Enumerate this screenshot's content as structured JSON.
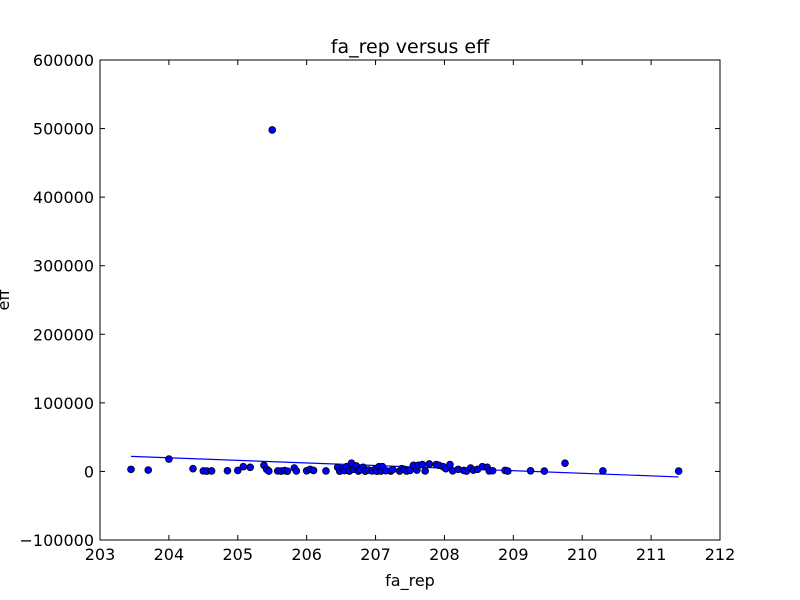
{
  "chart_data": {
    "type": "scatter",
    "title": "fa_rep versus eff",
    "xlabel": "fa_rep",
    "ylabel": "eff",
    "xlim": [
      203,
      212
    ],
    "ylim": [
      -100000,
      600000
    ],
    "x_ticks": [
      "203",
      "204",
      "205",
      "206",
      "207",
      "208",
      "209",
      "210",
      "211",
      "212"
    ],
    "y_ticks": [
      "600000",
      "500000",
      "400000",
      "300000",
      "200000",
      "100000",
      "0",
      "−100000"
    ],
    "x_tick_values": [
      203,
      204,
      205,
      206,
      207,
      208,
      209,
      210,
      211,
      212
    ],
    "y_tick_values": [
      600000,
      500000,
      400000,
      300000,
      200000,
      100000,
      0,
      -100000
    ],
    "grid": false,
    "point_color": "#0000ff",
    "line_color": "#0000ff",
    "points": [
      [
        203.45,
        3000
      ],
      [
        203.7,
        2000
      ],
      [
        204.0,
        18000
      ],
      [
        204.35,
        4000
      ],
      [
        204.5,
        800
      ],
      [
        204.55,
        500
      ],
      [
        204.62,
        700
      ],
      [
        204.85,
        1000
      ],
      [
        205.0,
        1500
      ],
      [
        205.08,
        7000
      ],
      [
        205.18,
        6000
      ],
      [
        205.38,
        9000
      ],
      [
        205.42,
        3000
      ],
      [
        205.45,
        500
      ],
      [
        205.5,
        498000
      ],
      [
        205.58,
        800
      ],
      [
        205.63,
        600
      ],
      [
        205.68,
        1200
      ],
      [
        205.72,
        400
      ],
      [
        205.82,
        5000
      ],
      [
        205.85,
        700
      ],
      [
        206.0,
        900
      ],
      [
        206.05,
        3000
      ],
      [
        206.1,
        1500
      ],
      [
        206.28,
        800
      ],
      [
        206.45,
        6000
      ],
      [
        206.48,
        300
      ],
      [
        206.52,
        4000
      ],
      [
        206.55,
        1200
      ],
      [
        206.58,
        7000
      ],
      [
        206.62,
        600
      ],
      [
        206.65,
        12000
      ],
      [
        206.68,
        3000
      ],
      [
        206.72,
        8000
      ],
      [
        206.75,
        500
      ],
      [
        206.78,
        2500
      ],
      [
        206.82,
        6000
      ],
      [
        206.85,
        400
      ],
      [
        206.9,
        2000
      ],
      [
        206.95,
        800
      ],
      [
        207.0,
        4000
      ],
      [
        207.02,
        300
      ],
      [
        207.05,
        7000
      ],
      [
        207.08,
        500
      ],
      [
        207.1,
        7000
      ],
      [
        207.15,
        1000
      ],
      [
        207.22,
        600
      ],
      [
        207.25,
        2500
      ],
      [
        207.35,
        500
      ],
      [
        207.38,
        4000
      ],
      [
        207.42,
        3000
      ],
      [
        207.45,
        600
      ],
      [
        207.5,
        1500
      ],
      [
        207.55,
        9000
      ],
      [
        207.6,
        2000
      ],
      [
        207.62,
        9000
      ],
      [
        207.68,
        10000
      ],
      [
        207.72,
        700
      ],
      [
        207.78,
        11000
      ],
      [
        207.88,
        10000
      ],
      [
        207.92,
        9000
      ],
      [
        207.98,
        7000
      ],
      [
        208.02,
        4000
      ],
      [
        208.08,
        10000
      ],
      [
        208.12,
        900
      ],
      [
        208.2,
        3000
      ],
      [
        208.28,
        1500
      ],
      [
        208.32,
        600
      ],
      [
        208.38,
        5000
      ],
      [
        208.42,
        2000
      ],
      [
        208.48,
        3000
      ],
      [
        208.55,
        7000
      ],
      [
        208.62,
        6000
      ],
      [
        208.65,
        800
      ],
      [
        208.7,
        1000
      ],
      [
        208.88,
        1500
      ],
      [
        208.92,
        600
      ],
      [
        209.25,
        900
      ],
      [
        209.45,
        500
      ],
      [
        209.75,
        12000
      ],
      [
        210.3,
        800
      ],
      [
        211.4,
        500
      ]
    ],
    "trend_line": [
      [
        203.45,
        22000
      ],
      [
        211.4,
        -8000
      ]
    ]
  }
}
